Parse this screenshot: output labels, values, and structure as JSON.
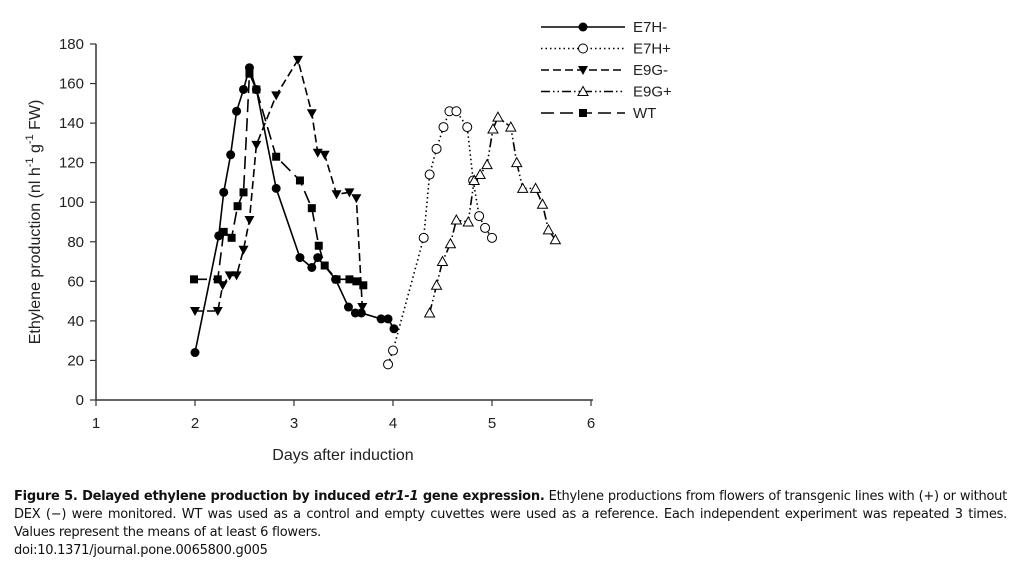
{
  "chart_data": {
    "type": "line",
    "title": "",
    "xlabel": "Days after induction",
    "ylabel_parts": [
      "Ethylene production (nl h",
      "-1",
      " g",
      "-1",
      " FW)"
    ],
    "xlim": [
      1,
      6
    ],
    "ylim": [
      0,
      180
    ],
    "xticks": [
      1,
      2,
      3,
      4,
      5,
      6
    ],
    "yticks": [
      0,
      20,
      40,
      60,
      80,
      100,
      120,
      140,
      160,
      180
    ],
    "grid": false,
    "legend_position": "top-right",
    "series": [
      {
        "name": "E7H-",
        "marker": "filled-circle",
        "line": "solid",
        "x": [
          2.0,
          2.24,
          2.29,
          2.36,
          2.42,
          2.49,
          2.55,
          2.62,
          2.82,
          3.06,
          3.18,
          3.24,
          3.42,
          3.55,
          3.62,
          3.68,
          3.88,
          3.95,
          4.01
        ],
        "y": [
          24,
          83,
          105,
          124,
          146,
          157,
          168,
          157,
          107,
          72,
          67,
          72,
          61,
          47,
          44,
          44,
          41,
          41,
          36
        ]
      },
      {
        "name": "E7H+",
        "marker": "open-circle",
        "line": "dotted",
        "x": [
          3.95,
          4.0,
          4.31,
          4.37,
          4.44,
          4.51,
          4.57,
          4.64,
          4.75,
          4.81,
          4.87,
          4.93,
          5.0
        ],
        "y": [
          18,
          25,
          82,
          114,
          127,
          138,
          146,
          146,
          138,
          111,
          93,
          87,
          82
        ]
      },
      {
        "name": "E9G-",
        "marker": "filled-down-triangle",
        "line": "dashed",
        "x": [
          2.0,
          2.23,
          2.28,
          2.35,
          2.42,
          2.49,
          2.55,
          2.62,
          2.82,
          3.04,
          3.18,
          3.24,
          3.31,
          3.43,
          3.56,
          3.63,
          3.69
        ],
        "y": [
          45,
          45,
          58,
          63,
          63,
          76,
          91,
          129,
          154,
          172,
          145,
          125,
          124,
          104,
          105,
          102,
          47
        ]
      },
      {
        "name": "E9G+",
        "marker": "open-up-triangle",
        "line": "dash-dot-dot",
        "x": [
          4.37,
          4.44,
          4.5,
          4.58,
          4.64,
          4.76,
          4.82,
          4.88,
          4.95,
          5.01,
          5.06,
          5.19,
          5.25,
          5.31,
          5.44,
          5.51,
          5.57,
          5.64
        ],
        "y": [
          44,
          58,
          70,
          79,
          91,
          90,
          111,
          114,
          119,
          137,
          143,
          138,
          120,
          107,
          107,
          99,
          86,
          81
        ]
      },
      {
        "name": "WT",
        "marker": "filled-square",
        "line": "long-dash",
        "x": [
          1.99,
          2.23,
          2.29,
          2.37,
          2.43,
          2.49,
          2.55,
          2.62,
          2.82,
          3.06,
          3.18,
          3.25,
          3.31,
          3.43,
          3.56,
          3.63,
          3.7
        ],
        "y": [
          61,
          61,
          85,
          82,
          98,
          105,
          165,
          157,
          123,
          111,
          97,
          78,
          68,
          61,
          61,
          60,
          58
        ]
      }
    ]
  },
  "caption": {
    "bold_start": "Figure 5. Delayed ethylene production by induced ",
    "italic_gene": "etr1-1",
    "bold_end": " gene expression.",
    "body": " Ethylene productions from flowers of transgenic lines with (+) or without DEX (−) were monitored. WT was used as a control and empty cuvettes were used as a reference. Each independent experiment was repeated 3 times. Values represent the means of at least 6 flowers.",
    "doi": "doi:10.1371/journal.pone.0065800.g005"
  }
}
